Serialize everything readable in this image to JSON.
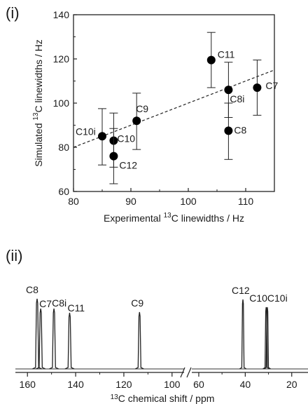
{
  "panels": {
    "top_label": "(i)",
    "bottom_label": "(ii)"
  },
  "chart_data": [
    {
      "type": "scatter",
      "xlabel_parts": [
        "Experimental ",
        "13",
        "C linewidths / Hz"
      ],
      "ylabel_parts": [
        "Simulated ",
        "13",
        "C linewidths / Hz"
      ],
      "xlim": [
        80,
        115
      ],
      "ylim": [
        60,
        140
      ],
      "x_ticks": [
        "80",
        "90",
        "100",
        "110"
      ],
      "y_ticks": [
        "60",
        "80",
        "100",
        "120",
        "140"
      ],
      "points": [
        {
          "label": "C10i",
          "x": 85,
          "y": 85,
          "err_low": 72,
          "err_high": 97.5
        },
        {
          "label": "C10",
          "x": 87,
          "y": 83,
          "err_low": 71,
          "err_high": 95.5
        },
        {
          "label": "C12",
          "x": 87,
          "y": 76,
          "err_low": 63.5,
          "err_high": 88.5
        },
        {
          "label": "C9",
          "x": 91,
          "y": 92,
          "err_low": 79,
          "err_high": 104.5
        },
        {
          "label": "C11",
          "x": 104,
          "y": 119.5,
          "err_low": 107,
          "err_high": 132
        },
        {
          "label": "C8i",
          "x": 107,
          "y": 106,
          "err_low": 93.5,
          "err_high": 118.5
        },
        {
          "label": "C8",
          "x": 107,
          "y": 87.5,
          "err_low": 74.5,
          "err_high": 100
        },
        {
          "label": "C7",
          "x": 112,
          "y": 107,
          "err_low": 94.5,
          "err_high": 119.5
        }
      ],
      "fit_line": {
        "x": [
          80,
          115
        ],
        "y": [
          80,
          115
        ],
        "style": "dashed"
      }
    },
    {
      "type": "line",
      "xlabel_parts": [
        "13",
        "C chemical shift / ppm"
      ],
      "x_reversed": true,
      "broken_axis": true,
      "segments": [
        {
          "range": [
            165,
            95
          ],
          "ticks": [
            "160",
            "140",
            "120",
            "100"
          ]
        },
        {
          "range": [
            63,
            13
          ],
          "ticks": [
            "60",
            "40",
            "20"
          ]
        }
      ],
      "peaks": [
        {
          "label": "C8",
          "ppm": 156.0,
          "height": 1.0,
          "width": 0.55
        },
        {
          "label": "C7",
          "ppm": 154.5,
          "height": 0.86,
          "width": 0.55
        },
        {
          "label": "C8i",
          "ppm": 149.0,
          "height": 0.86,
          "width": 0.55
        },
        {
          "label": "C11",
          "ppm": 142.5,
          "height": 0.8,
          "width": 0.55
        },
        {
          "label": "C9",
          "ppm": 113.5,
          "height": 0.81,
          "width": 0.5
        },
        {
          "label": "C12",
          "ppm": 41.0,
          "height": 0.99,
          "width": 0.4
        },
        {
          "label": "C10",
          "ppm": 31.0,
          "height": 0.88,
          "width": 0.4
        },
        {
          "label": "C10i",
          "ppm": 30.5,
          "height": 0.88,
          "width": 0.4
        }
      ]
    }
  ]
}
